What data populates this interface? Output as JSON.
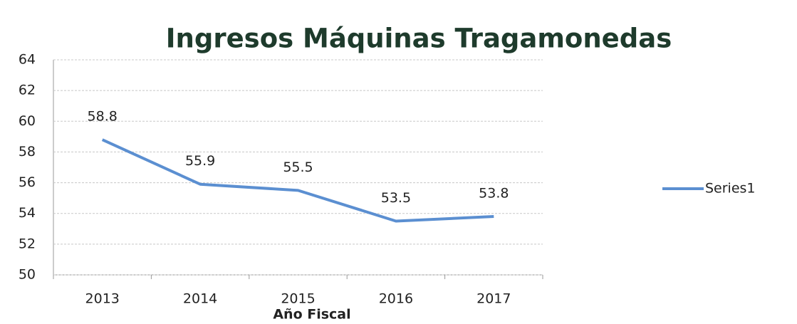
{
  "chart_data": {
    "type": "line",
    "title": "Ingresos Máquinas Tragamonedas",
    "x_label": "Año Fiscal",
    "categories": [
      "2013",
      "2014",
      "2015",
      "2016",
      "2017"
    ],
    "series": [
      {
        "name": "Series1",
        "color": "#5b8fd1",
        "values": [
          58.8,
          55.9,
          55.5,
          53.5,
          53.8
        ]
      }
    ],
    "ylim": [
      50,
      64
    ],
    "yticks": [
      50,
      52,
      54,
      56,
      58,
      60,
      62,
      64
    ],
    "grid": true,
    "legend": "right",
    "data_labels": true
  }
}
